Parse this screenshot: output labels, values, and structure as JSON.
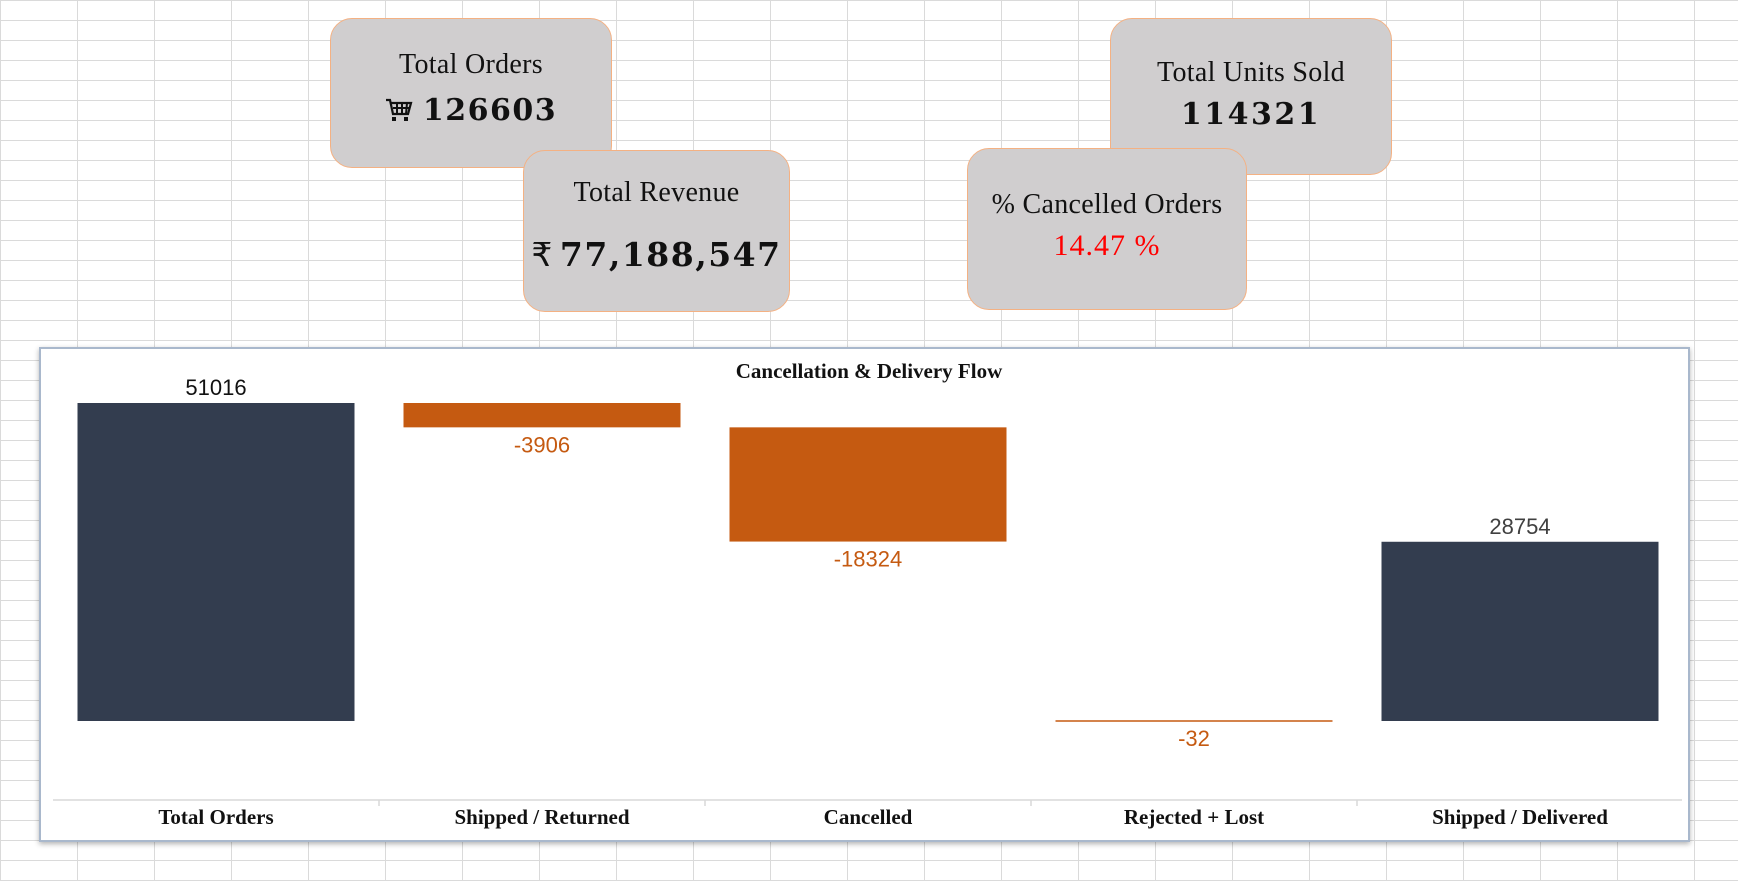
{
  "kpis": {
    "total_orders": {
      "label": "Total Orders",
      "value": "126603",
      "icon": "shopping-cart-icon"
    },
    "total_revenue": {
      "label": "Total Revenue",
      "symbol": "₹",
      "value": "77,188,547"
    },
    "total_units": {
      "label": "Total Units Sold",
      "value": "114321"
    },
    "pct_cancelled": {
      "label": "% Cancelled Orders",
      "value": "14.47 %",
      "color": "#ff0000"
    }
  },
  "colors": {
    "total_bar": "#333d4f",
    "decrease_bar": "#c55a11",
    "card_bg": "#d0cecf",
    "card_border": "#f4b183"
  },
  "chart_data": {
    "type": "bar",
    "subtype": "waterfall",
    "title": "Cancellation & Delivery Flow",
    "categories": [
      "Total Orders",
      "Shipped / Returned",
      "Cancelled",
      "Rejected + Lost",
      "Shipped / Delivered"
    ],
    "values": [
      51016,
      -3906,
      -18324,
      -32,
      28754
    ],
    "labels": [
      "51016",
      "-3906",
      "-18324",
      "-32",
      "28754"
    ],
    "kinds": [
      "total",
      "decrease",
      "decrease",
      "decrease",
      "total"
    ],
    "grid": false,
    "legend": "none"
  }
}
